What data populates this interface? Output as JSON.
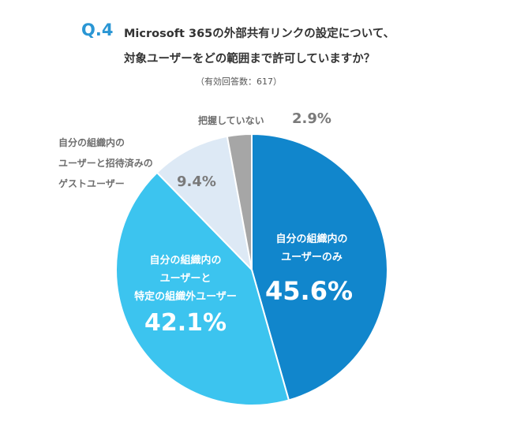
{
  "header": {
    "qnum": "Q.4",
    "line1": "Microsoft 365の外部共有リンクの設定について、",
    "line2": "対象ユーザーをどの範囲まで許可していますか？",
    "respondents": "（有効回答数：617）"
  },
  "chart_data": {
    "type": "pie",
    "start": "12 o'clock",
    "direction": "clockwise",
    "slices": [
      {
        "label_lines": [
          "自分の組織内の",
          "ユーザーのみ"
        ],
        "value": 45.6,
        "value_label": "45.6%",
        "color": "#1186cc"
      },
      {
        "label_lines": [
          "自分の組織内の",
          "ユーザーと",
          "特定の組織外ユーザー"
        ],
        "value": 42.1,
        "value_label": "42.1%",
        "color": "#3cc4ef"
      },
      {
        "label_lines": [
          "自分の組織内の",
          "ユーザーと招待済みの",
          "ゲストユーザー"
        ],
        "value": 9.4,
        "value_label": "9.4%",
        "color": "#dde9f5"
      },
      {
        "label_lines": [
          "把握していない"
        ],
        "value": 2.9,
        "value_label": "2.9%",
        "color": "#a6a6a6"
      }
    ]
  }
}
